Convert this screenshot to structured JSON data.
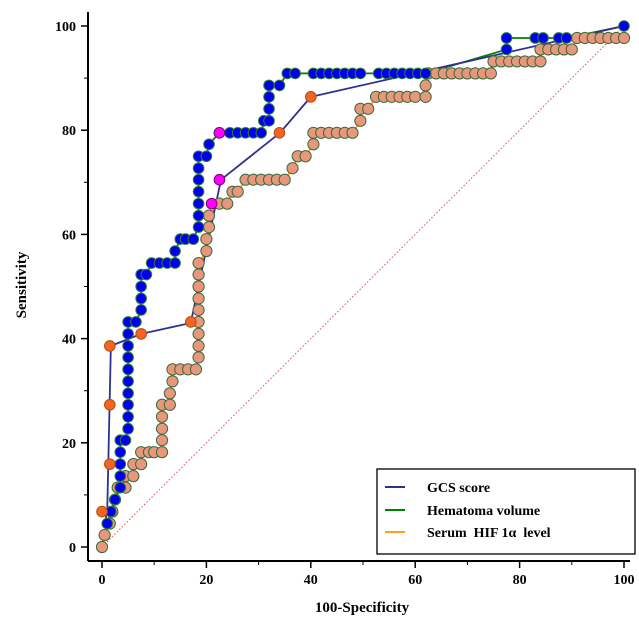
{
  "chart_data": {
    "type": "line",
    "xlabel": "100-Specificity",
    "ylabel": "Sensitivity",
    "xlim": [
      0,
      100
    ],
    "ylim": [
      0,
      100
    ],
    "xticks": [
      "0",
      "20",
      "40",
      "60",
      "80",
      "100"
    ],
    "yticks": [
      "0",
      "20",
      "40",
      "60",
      "80",
      "100"
    ],
    "grid": false,
    "legend_position": "bottom-right",
    "reference_line": {
      "from": [
        0,
        0
      ],
      "to": [
        100,
        100
      ],
      "style": "dotted",
      "color": "#d9534f"
    },
    "series": [
      {
        "name": "GCS score",
        "color": "#2e3192",
        "marker_color": "#0000ee",
        "points": [
          [
            0.5,
            4.5
          ],
          [
            1,
            6.8
          ],
          [
            1.7,
            38.6
          ],
          [
            7.5,
            40.9
          ],
          [
            17,
            43
          ],
          [
            22.8,
            70.5
          ],
          [
            34.1,
            79.5
          ],
          [
            40,
            86.4
          ],
          [
            100,
            100
          ]
        ]
      },
      {
        "name": "Hematoma volume",
        "color": "#008000",
        "marker_color": "#0000ee",
        "points": [
          [
            1,
            4.5
          ],
          [
            1.7,
            6.8
          ],
          [
            2.5,
            9.1
          ],
          [
            3.5,
            11.4
          ],
          [
            3.5,
            13.6
          ],
          [
            3.5,
            15.9
          ],
          [
            3.5,
            18.2
          ],
          [
            3.5,
            20.5
          ],
          [
            4.5,
            20.5
          ],
          [
            5,
            22.7
          ],
          [
            5,
            25
          ],
          [
            5,
            27.3
          ],
          [
            5,
            29.5
          ],
          [
            5,
            31.8
          ],
          [
            5,
            34.1
          ],
          [
            5,
            36.4
          ],
          [
            5,
            38.6
          ],
          [
            5,
            40.9
          ],
          [
            5,
            43.2
          ],
          [
            6.5,
            43.2
          ],
          [
            7.5,
            45.5
          ],
          [
            7.5,
            47.7
          ],
          [
            7.5,
            50
          ],
          [
            7.5,
            52.3
          ],
          [
            8.5,
            52.3
          ],
          [
            9.5,
            54.5
          ],
          [
            11,
            54.5
          ],
          [
            12.5,
            54.5
          ],
          [
            14,
            54.5
          ],
          [
            14,
            56.8
          ],
          [
            15,
            59.1
          ],
          [
            16,
            59.1
          ],
          [
            17.5,
            59.1
          ],
          [
            18.5,
            61.4
          ],
          [
            18.5,
            63.6
          ],
          [
            18.5,
            65.9
          ],
          [
            18.5,
            68.2
          ],
          [
            18.5,
            70.5
          ],
          [
            18.5,
            72.7
          ],
          [
            18.5,
            75
          ],
          [
            20,
            75
          ],
          [
            20.5,
            77.3
          ],
          [
            22.5,
            79.5
          ],
          [
            24.5,
            79.5
          ],
          [
            26,
            79.5
          ],
          [
            27.5,
            79.5
          ],
          [
            29,
            79.5
          ],
          [
            30.5,
            79.5
          ],
          [
            31,
            81.8
          ],
          [
            32,
            81.8
          ],
          [
            32,
            84.1
          ],
          [
            32,
            86.4
          ],
          [
            32,
            88.6
          ],
          [
            34,
            88.6
          ],
          [
            35.5,
            90.9
          ],
          [
            37,
            90.9
          ],
          [
            40.5,
            90.9
          ],
          [
            42,
            90.9
          ],
          [
            43.5,
            90.9
          ],
          [
            45,
            90.9
          ],
          [
            46.5,
            90.9
          ],
          [
            48,
            90.9
          ],
          [
            49.5,
            90.9
          ],
          [
            53,
            90.9
          ],
          [
            54.5,
            90.9
          ],
          [
            56,
            90.9
          ],
          [
            57.5,
            90.9
          ],
          [
            59,
            90.9
          ],
          [
            60.5,
            90.9
          ],
          [
            62,
            90.9
          ],
          [
            77.5,
            95.5
          ],
          [
            77.5,
            97.7
          ],
          [
            83,
            97.7
          ],
          [
            84.5,
            97.7
          ],
          [
            87.5,
            97.7
          ],
          [
            89,
            97.7
          ],
          [
            100,
            100
          ]
        ]
      },
      {
        "name": "Serum  HIF 1α  level",
        "color": "#ff9f1c",
        "marker_color": "#e8967c",
        "points": [
          [
            0,
            0
          ],
          [
            0.5,
            2.3
          ],
          [
            1.5,
            4.5
          ],
          [
            2,
            6.8
          ],
          [
            2.5,
            9.1
          ],
          [
            3,
            11.4
          ],
          [
            4.5,
            11.4
          ],
          [
            4.5,
            13.6
          ],
          [
            6,
            13.6
          ],
          [
            6,
            15.9
          ],
          [
            7.5,
            15.9
          ],
          [
            7.5,
            18.2
          ],
          [
            9,
            18.2
          ],
          [
            10,
            18.2
          ],
          [
            11.5,
            18.2
          ],
          [
            11.5,
            20.5
          ],
          [
            11.5,
            22.7
          ],
          [
            11.5,
            25
          ],
          [
            11.5,
            27.3
          ],
          [
            13,
            27.3
          ],
          [
            13,
            29.5
          ],
          [
            13.5,
            31.8
          ],
          [
            13.5,
            34.1
          ],
          [
            15,
            34.1
          ],
          [
            16.5,
            34.1
          ],
          [
            18,
            34.1
          ],
          [
            18.5,
            36.4
          ],
          [
            18.5,
            38.6
          ],
          [
            18.5,
            40.9
          ],
          [
            18.5,
            43.2
          ],
          [
            18.5,
            45.5
          ],
          [
            18.5,
            47.7
          ],
          [
            18.5,
            50
          ],
          [
            18.5,
            52.3
          ],
          [
            18.5,
            54.5
          ],
          [
            20,
            56.8
          ],
          [
            20,
            59.1
          ],
          [
            20.5,
            61.4
          ],
          [
            20.5,
            63.6
          ],
          [
            22.5,
            65.9
          ],
          [
            24,
            65.9
          ],
          [
            25,
            68.2
          ],
          [
            26,
            68.2
          ],
          [
            27.5,
            70.5
          ],
          [
            29,
            70.5
          ],
          [
            30.5,
            70.5
          ],
          [
            32,
            70.5
          ],
          [
            33.5,
            70.5
          ],
          [
            35,
            70.5
          ],
          [
            36.5,
            72.7
          ],
          [
            37.5,
            75
          ],
          [
            39,
            75
          ],
          [
            40.5,
            77.3
          ],
          [
            40.5,
            79.5
          ],
          [
            42,
            79.5
          ],
          [
            43.5,
            79.5
          ],
          [
            45,
            79.5
          ],
          [
            46.5,
            79.5
          ],
          [
            48,
            79.5
          ],
          [
            49.5,
            81.8
          ],
          [
            49.5,
            84.1
          ],
          [
            51,
            84.1
          ],
          [
            52.5,
            86.4
          ],
          [
            54,
            86.4
          ],
          [
            55.5,
            86.4
          ],
          [
            57,
            86.4
          ],
          [
            58.5,
            86.4
          ],
          [
            60,
            86.4
          ],
          [
            62,
            86.4
          ],
          [
            62,
            88.6
          ],
          [
            62.5,
            90.9
          ],
          [
            64,
            90.9
          ],
          [
            65.5,
            90.9
          ],
          [
            67,
            90.9
          ],
          [
            68.5,
            90.9
          ],
          [
            70,
            90.9
          ],
          [
            71.5,
            90.9
          ],
          [
            73,
            90.9
          ],
          [
            74.5,
            90.9
          ],
          [
            75,
            93.2
          ],
          [
            76.5,
            93.2
          ],
          [
            78,
            93.2
          ],
          [
            79.5,
            93.2
          ],
          [
            81,
            93.2
          ],
          [
            82.5,
            93.2
          ],
          [
            84,
            93.2
          ],
          [
            84,
            95.5
          ],
          [
            85.5,
            95.5
          ],
          [
            87,
            95.5
          ],
          [
            88.5,
            95.5
          ],
          [
            90,
            95.5
          ],
          [
            91,
            97.7
          ],
          [
            92.5,
            97.7
          ],
          [
            94,
            97.7
          ],
          [
            95.5,
            97.7
          ],
          [
            97,
            97.7
          ],
          [
            98.5,
            97.7
          ],
          [
            100,
            97.7
          ]
        ]
      }
    ],
    "highlight_points": [
      {
        "x": 22.5,
        "y": 79.5,
        "color": "#ff00ff"
      },
      {
        "x": 22.5,
        "y": 70.5,
        "color": "#ff00ff"
      },
      {
        "x": 21,
        "y": 65.9,
        "color": "#ff00ff"
      }
    ],
    "orange_markers": [
      [
        0,
        6.8
      ],
      [
        1.5,
        15.9
      ],
      [
        1.5,
        27.3
      ],
      [
        1.5,
        38.6
      ],
      [
        7.5,
        40.9
      ],
      [
        17,
        43.2
      ],
      [
        34,
        79.5
      ],
      [
        40,
        86.4
      ]
    ]
  }
}
